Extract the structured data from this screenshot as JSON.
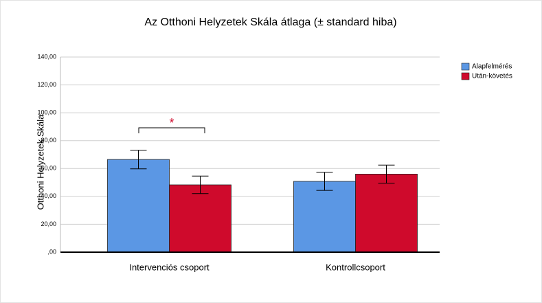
{
  "chart_data": {
    "type": "bar",
    "title": "Az Otthoni Helyzetek Skála átlaga (± standard hiba)",
    "y_label": "Otthoni Helyzetek Skála",
    "categories": [
      "Intervenciós csoport",
      "Kontrollcsoport"
    ],
    "series": [
      {
        "name": "Alapfelmérés",
        "color": "#5b97e4",
        "values": [
          66.5,
          50.8
        ],
        "errors": [
          6.7,
          6.5
        ]
      },
      {
        "name": "Után-követés",
        "color": "#cf0a2c",
        "values": [
          48.3,
          56.0
        ],
        "errors": [
          6.3,
          6.5
        ]
      }
    ],
    "annotations": [
      "*"
    ],
    "ylim": [
      0,
      140
    ],
    "yticks": [
      {
        "value": 0,
        "label": ",00"
      },
      {
        "value": 20,
        "label": "20,00"
      },
      {
        "value": 40,
        "label": "40,00"
      },
      {
        "value": 60,
        "label": "60,00"
      },
      {
        "value": 80,
        "label": "80,00"
      },
      {
        "value": 100,
        "label": "100,00"
      },
      {
        "value": 120,
        "label": "120,00"
      },
      {
        "value": 140,
        "label": "140,00"
      }
    ],
    "grid": true,
    "legend": "right"
  }
}
